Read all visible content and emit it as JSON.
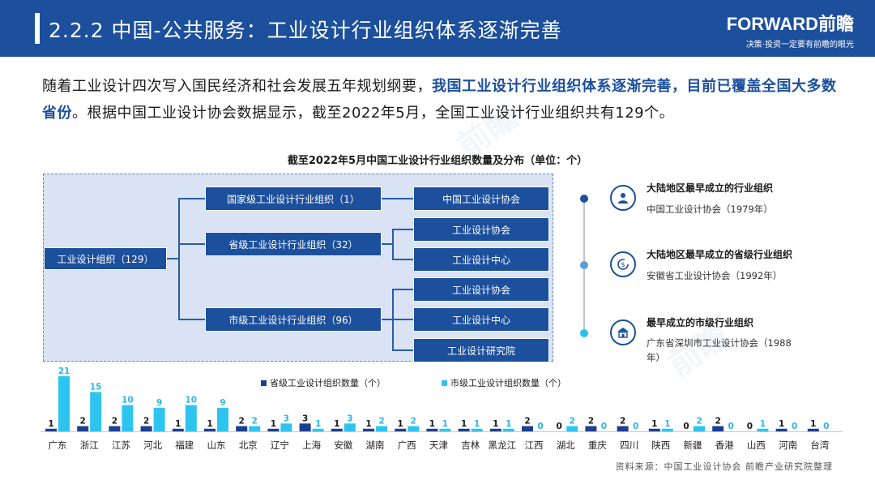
{
  "header": {
    "title": "2.2.2 中国-公共服务：工业设计行业组织体系逐渐完善",
    "brand_logo": "FORWARD前瞻",
    "brand_slogan": "决策·投资一定要有前瞻的眼光"
  },
  "paragraph": {
    "part1": "随着工业设计四次写入国民经济和社会发展五年规划纲要，",
    "highlight": "我国工业设计行业组织体系逐渐完善，目前已覆盖全国大多数省份",
    "part2": "。根据中国工业设计协会数据显示，截至2022年5月，全国工业设计行业组织共有129个。"
  },
  "chart_title": "截至2022年5月中国工业设计行业组织数量及分布（单位：个）",
  "org_chart": {
    "root": "工业设计组织（129）",
    "levels": [
      {
        "label": "国家级工业设计行业组织（1）",
        "children": [
          "中国工业设计协会"
        ]
      },
      {
        "label": "省级工业设计行业组织（32）",
        "children": [
          "工业设计协会",
          "工业设计中心"
        ]
      },
      {
        "label": "市级工业设计行业组织（96）",
        "children": [
          "工业设计协会",
          "工业设计中心",
          "工业设计研究院"
        ]
      }
    ]
  },
  "timeline": [
    {
      "icon": "person-badge-icon",
      "title": "大陆地区最早成立的行业组织",
      "desc": "中国工业设计协会（1979年）",
      "dot_color": "#1c4f9c"
    },
    {
      "icon": "refresh-coin-icon",
      "title": "大陆地区最早成立的省级行业组织",
      "desc": "安徽省工业设计协会（1992年）",
      "dot_color": "#5a9fd8"
    },
    {
      "icon": "building-icon",
      "title": "最早成立的市级行业组织",
      "desc": "广东省深圳市工业设计协会（1988年）",
      "dot_color": "#28c0ee"
    }
  ],
  "chart_data": {
    "type": "bar",
    "categories": [
      "广东",
      "浙江",
      "江苏",
      "河北",
      "福建",
      "山东",
      "北京",
      "辽宁",
      "上海",
      "安徽",
      "湖南",
      "广西",
      "天津",
      "吉林",
      "黑龙江",
      "江西",
      "湖北",
      "重庆",
      "四川",
      "陕西",
      "新疆",
      "香港",
      "山西",
      "河南",
      "台湾"
    ],
    "series": [
      {
        "name": "省级工业设计组织数量（个）",
        "color": "#1c3f8f",
        "values": [
          1,
          2,
          2,
          2,
          1,
          1,
          2,
          1,
          3,
          1,
          1,
          1,
          1,
          1,
          1,
          2,
          0,
          2,
          2,
          1,
          0,
          2,
          0,
          1,
          1
        ]
      },
      {
        "name": "市级工业设计组织数量（个）",
        "color": "#2ec4f0",
        "values": [
          21,
          15,
          10,
          9,
          10,
          9,
          2,
          3,
          1,
          3,
          2,
          2,
          1,
          1,
          1,
          0,
          2,
          0,
          0,
          1,
          2,
          0,
          1,
          0,
          0
        ]
      }
    ],
    "ylim": [
      0,
      21
    ]
  },
  "source": "资料来源：中国工业设计协会 前瞻产业研究院整理"
}
